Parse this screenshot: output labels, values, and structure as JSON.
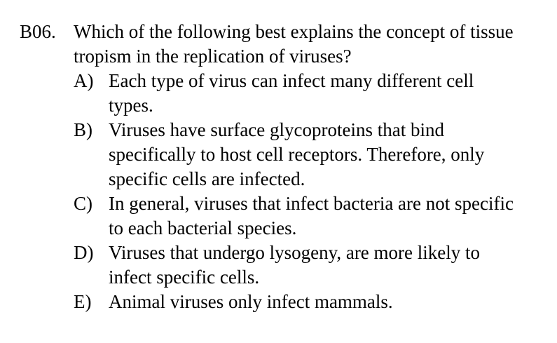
{
  "question": {
    "number": "B06.",
    "text": "Which of the following best explains the concept of tissue tropism in the replication of viruses?"
  },
  "options": [
    {
      "letter": "A)",
      "text": "Each type of virus can infect many different cell types."
    },
    {
      "letter": "B)",
      "text": "Viruses have surface glycoproteins that bind specifically to host cell receptors. Therefore, only specific cells are infected."
    },
    {
      "letter": "C)",
      "text": "In general, viruses that infect bacteria are not specific to each bacterial species."
    },
    {
      "letter": "D)",
      "text": "Viruses that undergo lysogeny, are more likely to infect specific cells."
    },
    {
      "letter": "E)",
      "text": "Animal viruses only infect mammals."
    }
  ]
}
